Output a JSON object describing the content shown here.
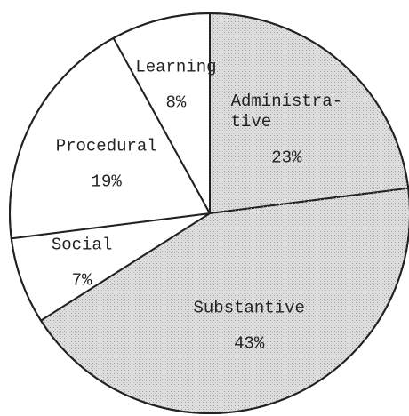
{
  "chart_data": {
    "type": "pie",
    "categories": [
      "Administra-\ntive",
      "Substantive",
      "Social",
      "Procedural",
      "Learning"
    ],
    "values": [
      23,
      43,
      7,
      19,
      8
    ],
    "value_labels": [
      "23%",
      "43%",
      "7%",
      "19%",
      "8%"
    ],
    "colors": [
      "#dedede",
      "#dedede",
      "#ffffff",
      "#ffffff",
      "#ffffff"
    ]
  }
}
